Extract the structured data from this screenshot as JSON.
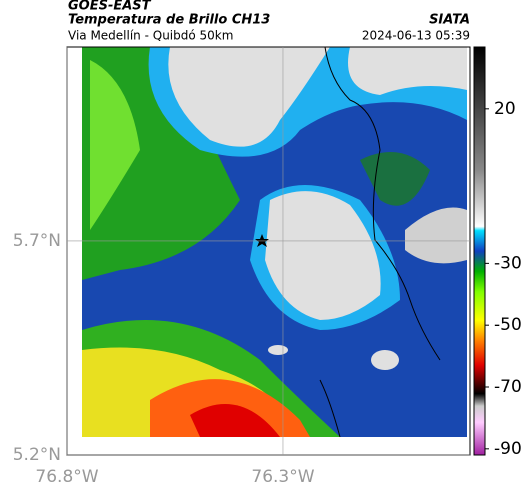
{
  "header": {
    "satellite": "GOES-EAST",
    "product": "Temperatura de Brillo CH13",
    "route": "Via Medellín - Quibdó 50km",
    "source": "SIATA",
    "timestamp": "2024-06-13 05:39"
  },
  "map": {
    "lat_lim": [
      6.153,
      5.2
    ],
    "lon_lim": [
      -76.8,
      -75.867
    ],
    "lat_ticks": [
      {
        "value": 5.7,
        "label": "5.7°N"
      },
      {
        "value": 5.2,
        "label": "5.2°N"
      }
    ],
    "lon_ticks": [
      {
        "value": -76.8,
        "label": "76.8°W"
      },
      {
        "value": -76.3,
        "label": "76.3°W"
      }
    ]
  },
  "colorbar": {
    "lim": [
      40,
      -92
    ],
    "ticks": [
      20,
      -30,
      -50,
      -70,
      -90
    ]
  }
}
